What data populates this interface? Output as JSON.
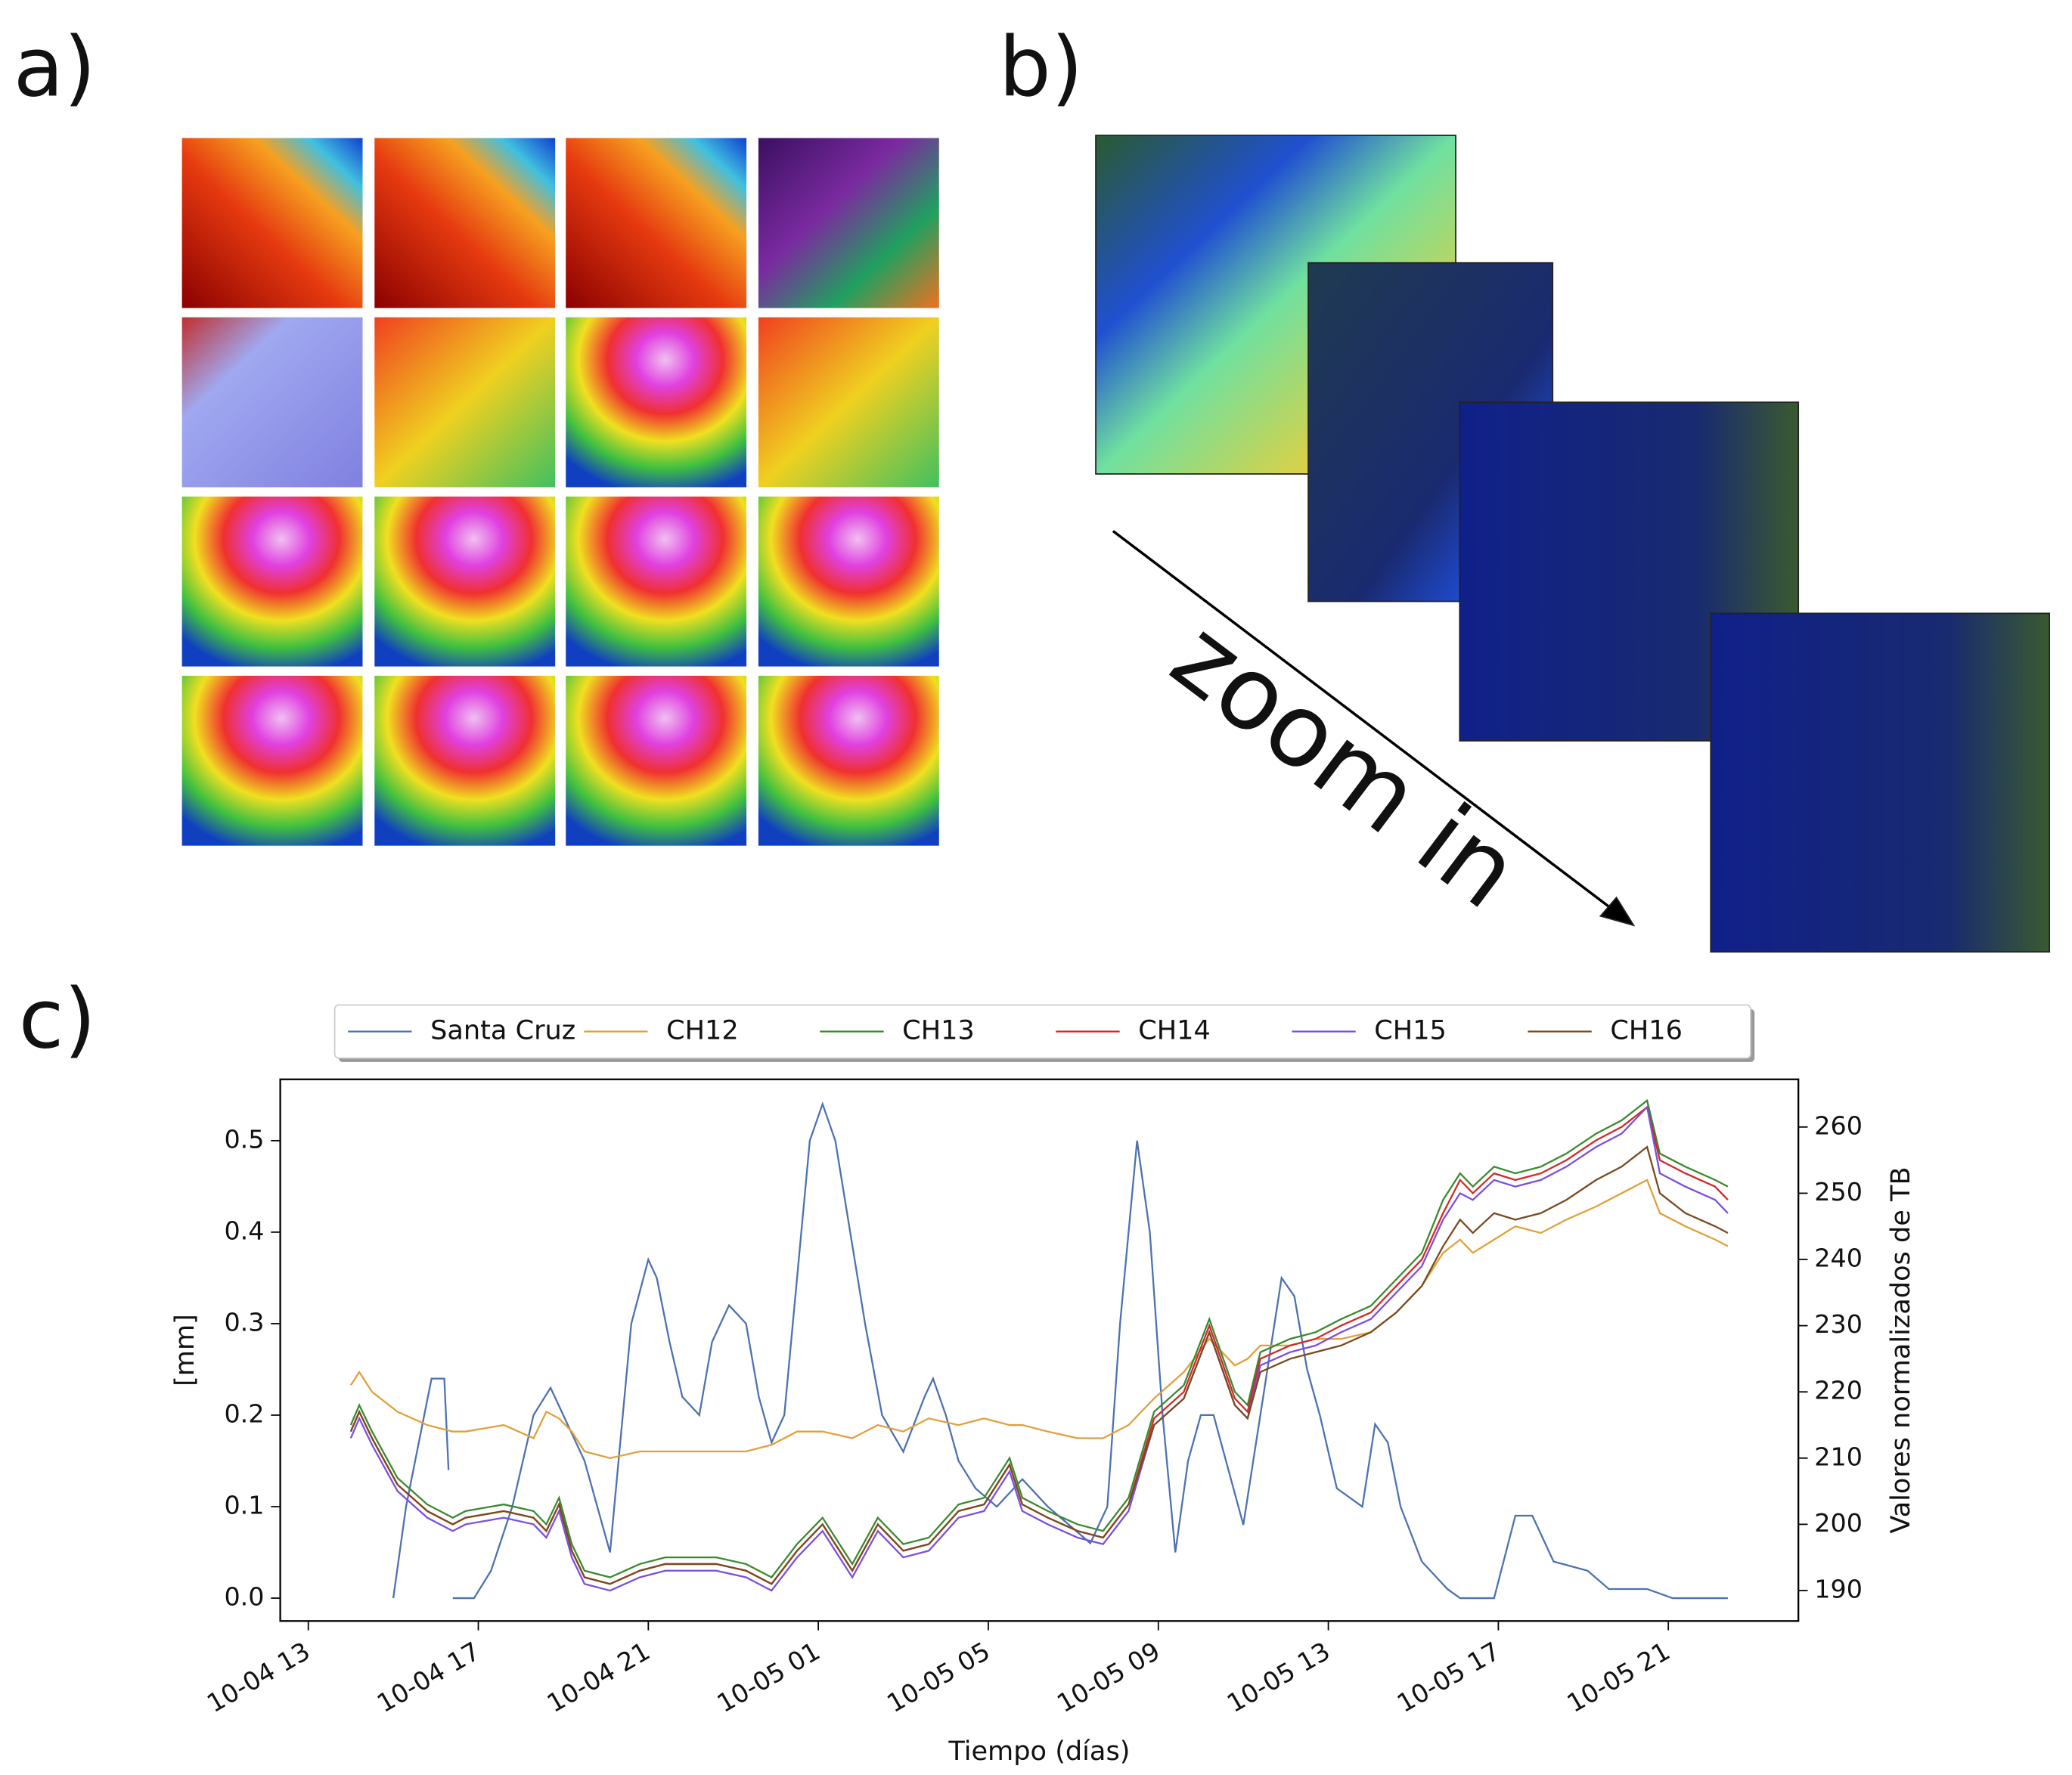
{
  "panels": {
    "a": "a)",
    "b": "b)",
    "c": "c)",
    "zoom": "zoom in"
  },
  "chart_data": {
    "type": "line",
    "ylabel": "[mm]",
    "y2label": "Valores normalizados de TB",
    "xlabel": "Tiempo (días)",
    "legend": "above",
    "xlim": [
      -0.66,
      35.06
    ],
    "xticks": [
      {
        "value": 0,
        "label": "10-04 13"
      },
      {
        "value": 4,
        "label": "10-04 17"
      },
      {
        "value": 8,
        "label": "10-04 21"
      },
      {
        "value": 12,
        "label": "10-05 01"
      },
      {
        "value": 16,
        "label": "10-05 05"
      },
      {
        "value": 20,
        "label": "10-05 09"
      },
      {
        "value": 24,
        "label": "10-05 13"
      },
      {
        "value": 28,
        "label": "10-05 17"
      },
      {
        "value": 32,
        "label": "10-05 21"
      }
    ],
    "ylim": [
      -0.025,
      0.567
    ],
    "yticks": [
      {
        "value": 0,
        "label": "0.0"
      },
      {
        "value": 0.1,
        "label": "0.1"
      },
      {
        "value": 0.2,
        "label": "0.2"
      },
      {
        "value": 0.3,
        "label": "0.3"
      },
      {
        "value": 0.4,
        "label": "0.4"
      },
      {
        "value": 0.5,
        "label": "0.5"
      }
    ],
    "y2lim": [
      185.4,
      267.2
    ],
    "y2ticks": [
      190,
      200,
      210,
      220,
      230,
      240,
      250,
      260
    ],
    "series": [
      {
        "name": "Santa Cruz",
        "color": "#4c72b0",
        "x": [
          2.0,
          2.3,
          2.9,
          3.2,
          3.3,
          3.35,
          3.4,
          3.9,
          4.3,
          4.8,
          5.3,
          5.7,
          6.2,
          6.5,
          6.8,
          7.1,
          7.3,
          7.6,
          8.0,
          8.2,
          8.5,
          8.8,
          9.2,
          9.5,
          9.9,
          10.3,
          10.6,
          10.9,
          11.2,
          11.5,
          11.8,
          12.1,
          12.4,
          12.75,
          13.1,
          13.5,
          14.0,
          14.5,
          14.7,
          15.0,
          15.3,
          15.7,
          16.2,
          16.8,
          17.4,
          17.9,
          18.4,
          18.8,
          19.1,
          19.5,
          19.8,
          20.1,
          20.4,
          20.7,
          21.0,
          21.3,
          22.0,
          22.4,
          22.9,
          23.2,
          23.5,
          23.8,
          24.2,
          24.8,
          25.1,
          25.4,
          25.7,
          26.2,
          26.8,
          27.1,
          27.9,
          28.4,
          28.8,
          29.3,
          30.1,
          30.6,
          31.5,
          32.1,
          33.4
        ],
        "values": [
          0.0,
          0.1,
          0.24,
          0.24,
          0.14,
          null,
          0.0,
          0.0,
          0.03,
          0.1,
          0.2,
          0.23,
          0.18,
          0.15,
          0.1,
          0.05,
          0.15,
          0.3,
          0.37,
          0.35,
          0.28,
          0.22,
          0.2,
          0.28,
          0.32,
          0.3,
          0.22,
          0.17,
          0.2,
          0.35,
          0.5,
          0.54,
          0.5,
          0.4,
          0.3,
          0.2,
          0.16,
          0.22,
          0.24,
          0.2,
          0.15,
          0.12,
          0.1,
          0.13,
          0.1,
          0.08,
          0.06,
          0.1,
          0.3,
          0.5,
          0.4,
          0.2,
          0.05,
          0.15,
          0.2,
          0.2,
          0.08,
          0.2,
          0.35,
          0.33,
          0.25,
          0.2,
          0.12,
          0.1,
          0.19,
          0.17,
          0.1,
          0.04,
          0.01,
          0.0,
          0.0,
          0.09,
          0.09,
          0.04,
          0.03,
          0.01,
          0.01,
          0.0,
          0.0
        ]
      },
      {
        "name": "CH12",
        "color": "#e1a03a",
        "axis": "y2",
        "x": [
          1.0,
          1.2,
          1.5,
          2.1,
          2.8,
          3.4,
          3.7,
          4.6,
          5.3,
          5.6,
          5.9,
          6.2,
          6.5,
          7.1,
          7.8,
          8.4,
          9.6,
          10.3,
          10.9,
          11.5,
          12.1,
          12.8,
          13.4,
          14.0,
          14.6,
          15.3,
          15.9,
          16.5,
          16.8,
          17.4,
          18.1,
          18.7,
          19.3,
          19.9,
          20.6,
          21.2,
          21.8,
          22.1,
          22.4,
          23.1,
          23.7,
          24.3,
          25.0,
          25.6,
          26.2,
          26.7,
          27.1,
          27.4,
          27.9,
          28.4,
          29.0,
          29.6,
          30.3,
          30.9,
          31.5,
          31.8,
          32.4,
          33.1,
          33.4
        ],
        "values": [
          221,
          223,
          220,
          217,
          215,
          214,
          214,
          215,
          213,
          217,
          216,
          214,
          211,
          210,
          211,
          211,
          211,
          211,
          212,
          214,
          214,
          213,
          215,
          214,
          216,
          215,
          216,
          215,
          215,
          214,
          213,
          213,
          215,
          219,
          223,
          228,
          224,
          225,
          227,
          227,
          228,
          228,
          229,
          232,
          236,
          241,
          243,
          241,
          243,
          245,
          244,
          246,
          248,
          250,
          252,
          247,
          245,
          243,
          242
        ]
      },
      {
        "name": "CH13",
        "color": "#3a8a2e",
        "axis": "y2",
        "x": [
          1.0,
          1.2,
          1.5,
          2.1,
          2.8,
          3.4,
          3.7,
          4.6,
          5.3,
          5.6,
          5.9,
          6.2,
          6.5,
          7.1,
          7.8,
          8.4,
          9.6,
          10.3,
          10.9,
          11.5,
          12.1,
          12.8,
          13.4,
          14.0,
          14.6,
          15.3,
          15.9,
          16.5,
          16.8,
          17.4,
          18.1,
          18.7,
          19.3,
          19.9,
          20.6,
          21.2,
          21.8,
          22.1,
          22.4,
          23.1,
          23.7,
          24.3,
          25.0,
          25.6,
          26.2,
          26.7,
          27.1,
          27.4,
          27.9,
          28.4,
          29.0,
          29.6,
          30.3,
          30.9,
          31.5,
          31.8,
          32.4,
          33.1,
          33.4
        ],
        "values": [
          215,
          218,
          214,
          207,
          203,
          201,
          202,
          203,
          202,
          200,
          204,
          197,
          193,
          192,
          194,
          195,
          195,
          194,
          192,
          197,
          201,
          194,
          201,
          197,
          198,
          203,
          204,
          210,
          204,
          202,
          200,
          199,
          204,
          217,
          221,
          231,
          220,
          218,
          226,
          228,
          229,
          231,
          233,
          237,
          241,
          249,
          253,
          251,
          254,
          253,
          254,
          256,
          259,
          261,
          264,
          256,
          254,
          252,
          251
        ]
      },
      {
        "name": "CH14",
        "color": "#d62728",
        "axis": "y2",
        "x": [
          1.0,
          1.2,
          1.5,
          2.1,
          2.8,
          3.4,
          3.7,
          4.6,
          5.3,
          5.6,
          5.9,
          6.2,
          6.5,
          7.1,
          7.8,
          8.4,
          9.6,
          10.3,
          10.9,
          11.5,
          12.1,
          12.8,
          13.4,
          14.0,
          14.6,
          15.3,
          15.9,
          16.5,
          16.8,
          17.4,
          18.1,
          18.7,
          19.3,
          19.9,
          20.6,
          21.2,
          21.8,
          22.1,
          22.4,
          23.1,
          23.7,
          24.3,
          25.0,
          25.6,
          26.2,
          26.7,
          27.1,
          27.4,
          27.9,
          28.4,
          29.0,
          29.6,
          30.3,
          30.9,
          31.5,
          31.8,
          32.4,
          33.1,
          33.4
        ],
        "values": [
          214,
          217,
          213,
          206,
          202,
          200,
          201,
          202,
          201,
          199,
          203,
          196,
          192,
          191,
          193,
          194,
          194,
          193,
          191,
          196,
          200,
          193,
          200,
          196,
          197,
          202,
          203,
          209,
          203,
          201,
          199,
          198,
          203,
          216,
          220,
          230,
          219,
          217,
          225,
          227,
          228,
          230,
          232,
          236,
          240,
          247,
          252,
          250,
          253,
          252,
          253,
          255,
          258,
          260,
          263,
          255,
          253,
          251,
          249
        ]
      },
      {
        "name": "CH15",
        "color": "#7b4fe0",
        "axis": "y2",
        "x": [
          1.0,
          1.2,
          1.5,
          2.1,
          2.8,
          3.4,
          3.7,
          4.6,
          5.3,
          5.6,
          5.9,
          6.2,
          6.5,
          7.1,
          7.8,
          8.4,
          9.6,
          10.3,
          10.9,
          11.5,
          12.1,
          12.8,
          13.4,
          14.0,
          14.6,
          15.3,
          15.9,
          16.5,
          16.8,
          17.4,
          18.1,
          18.7,
          19.3,
          19.9,
          20.6,
          21.2,
          21.8,
          22.1,
          22.4,
          23.1,
          23.7,
          24.3,
          25.0,
          25.6,
          26.2,
          26.7,
          27.1,
          27.4,
          27.9,
          28.4,
          29.0,
          29.6,
          30.3,
          30.9,
          31.5,
          31.8,
          32.4,
          33.1,
          33.4
        ],
        "values": [
          213,
          216,
          212,
          205,
          201,
          199,
          200,
          201,
          200,
          198,
          202,
          195,
          191,
          190,
          192,
          193,
          193,
          192,
          190,
          195,
          199,
          192,
          199,
          195,
          196,
          201,
          202,
          208,
          202,
          200,
          198,
          197,
          202,
          215,
          219,
          229,
          218,
          216,
          224,
          226,
          227,
          229,
          231,
          235,
          239,
          246,
          250,
          249,
          252,
          251,
          252,
          254,
          257,
          259,
          263,
          253,
          251,
          249,
          247
        ]
      },
      {
        "name": "CH16",
        "color": "#7a4a1f",
        "axis": "y2",
        "x": [
          1.0,
          1.2,
          1.5,
          2.1,
          2.8,
          3.4,
          3.7,
          4.6,
          5.3,
          5.6,
          5.9,
          6.2,
          6.5,
          7.1,
          7.8,
          8.4,
          9.6,
          10.3,
          10.9,
          11.5,
          12.1,
          12.8,
          13.4,
          14.0,
          14.6,
          15.3,
          15.9,
          16.5,
          16.8,
          17.4,
          18.1,
          18.7,
          19.3,
          19.9,
          20.6,
          21.2,
          21.8,
          22.1,
          22.4,
          23.1,
          23.7,
          24.3,
          25.0,
          25.6,
          26.2,
          26.7,
          27.1,
          27.4,
          27.9,
          28.4,
          29.0,
          29.6,
          30.3,
          30.9,
          31.5,
          31.8,
          32.4,
          33.1,
          33.4
        ],
        "values": [
          214,
          217,
          213,
          206,
          202,
          200,
          201,
          202,
          201,
          199,
          203,
          196,
          192,
          191,
          193,
          194,
          194,
          193,
          191,
          196,
          200,
          193,
          200,
          196,
          197,
          202,
          203,
          209,
          203,
          201,
          199,
          198,
          203,
          215,
          219,
          229,
          218,
          216,
          223,
          225,
          226,
          227,
          229,
          232,
          236,
          242,
          246,
          244,
          247,
          246,
          247,
          249,
          252,
          254,
          257,
          250,
          247,
          245,
          244
        ]
      }
    ]
  }
}
